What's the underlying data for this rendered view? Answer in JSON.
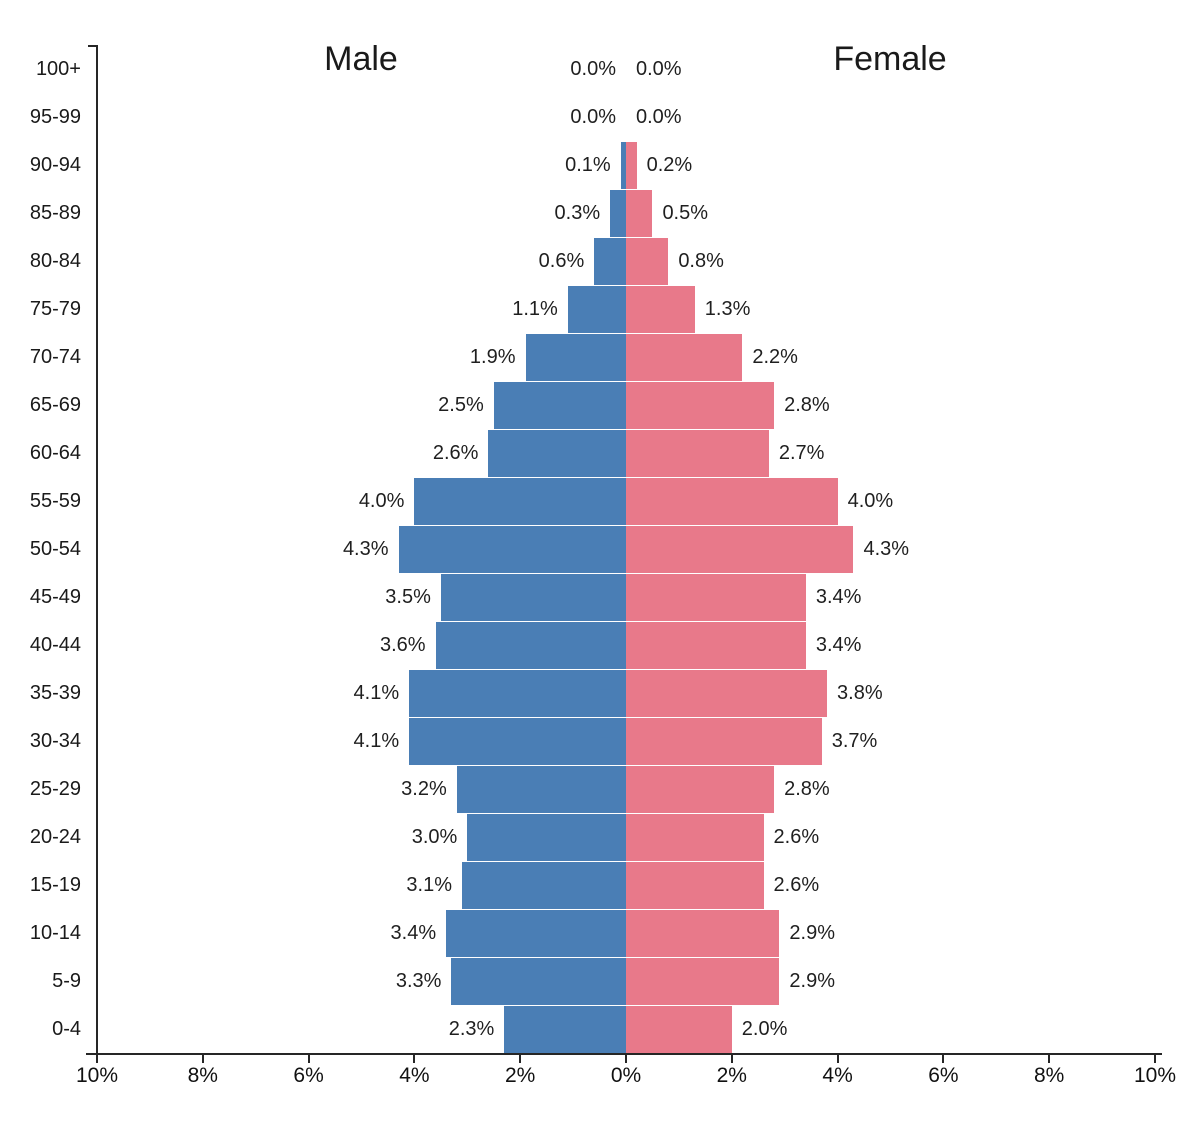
{
  "chart_data": {
    "type": "bar",
    "subtype": "population-pyramid",
    "title": "",
    "left_header": "Male",
    "right_header": "Female",
    "categories": [
      "100+",
      "95-99",
      "90-94",
      "85-89",
      "80-84",
      "75-79",
      "70-74",
      "65-69",
      "60-64",
      "55-59",
      "50-54",
      "45-49",
      "40-44",
      "35-39",
      "30-34",
      "25-29",
      "20-24",
      "15-19",
      "10-14",
      "5-9",
      "0-4"
    ],
    "series": [
      {
        "name": "Male",
        "color": "#4A7EB5",
        "values": [
          0.0,
          0.0,
          0.1,
          0.3,
          0.6,
          1.1,
          1.9,
          2.5,
          2.6,
          4.0,
          4.3,
          3.5,
          3.6,
          4.1,
          4.1,
          3.2,
          3.0,
          3.1,
          3.4,
          3.3,
          2.3
        ]
      },
      {
        "name": "Female",
        "color": "#E8798A",
        "values": [
          0.0,
          0.0,
          0.2,
          0.5,
          0.8,
          1.3,
          2.2,
          2.8,
          2.7,
          4.0,
          4.3,
          3.4,
          3.4,
          3.8,
          3.7,
          2.8,
          2.6,
          2.6,
          2.9,
          2.9,
          2.0
        ]
      }
    ],
    "value_labels": {
      "male": [
        "0.0%",
        "0.0%",
        "0.1%",
        "0.3%",
        "0.6%",
        "1.1%",
        "1.9%",
        "2.5%",
        "2.6%",
        "4.0%",
        "4.3%",
        "3.5%",
        "3.6%",
        "4.1%",
        "4.1%",
        "3.2%",
        "3.0%",
        "3.1%",
        "3.4%",
        "3.3%",
        "2.3%"
      ],
      "female": [
        "0.0%",
        "0.0%",
        "0.2%",
        "0.5%",
        "0.8%",
        "1.3%",
        "2.2%",
        "2.8%",
        "2.7%",
        "4.0%",
        "4.3%",
        "3.4%",
        "3.4%",
        "3.8%",
        "3.7%",
        "2.8%",
        "2.6%",
        "2.6%",
        "2.9%",
        "2.9%",
        "2.0%"
      ]
    },
    "xlim": [
      -10,
      10
    ],
    "x_tick_labels": [
      "10%",
      "8%",
      "6%",
      "4%",
      "2%",
      "0%",
      "2%",
      "4%",
      "6%",
      "8%",
      "10%"
    ],
    "ylabel": "",
    "xlabel": "",
    "grid": false,
    "legend_position": "top-inline"
  }
}
